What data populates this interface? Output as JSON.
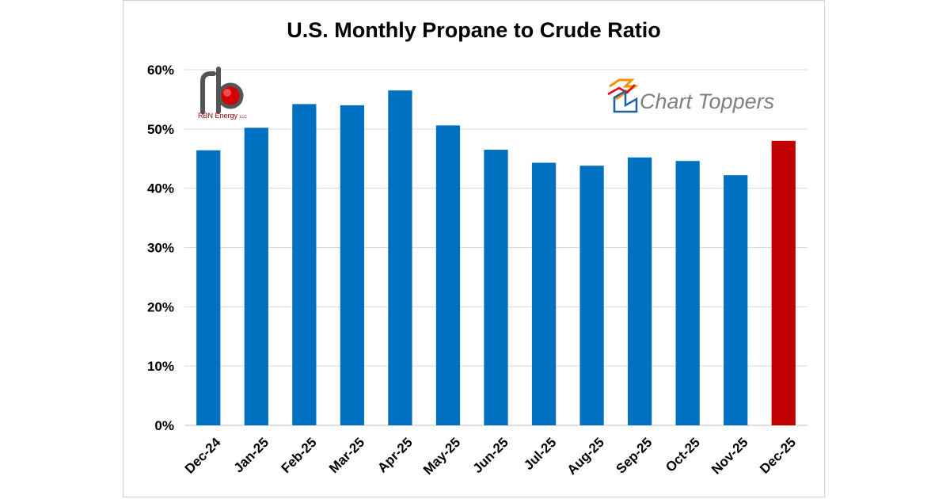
{
  "chart_data": {
    "type": "bar",
    "title": "U.S. Monthly Propane to Crude Ratio",
    "xlabel": "",
    "ylabel": "",
    "categories": [
      "Dec-24",
      "Jan-25",
      "Feb-25",
      "Mar-25",
      "Apr-25",
      "May-25",
      "Jun-25",
      "Jul-25",
      "Aug-25",
      "Sep-25",
      "Oct-25",
      "Nov-25",
      "Dec-25"
    ],
    "values": [
      46.4,
      50.2,
      54.2,
      54.0,
      56.5,
      50.6,
      46.5,
      44.3,
      43.8,
      45.2,
      44.6,
      42.2,
      48.0
    ],
    "ylim": [
      0,
      60
    ],
    "yticks": [
      "0%",
      "10%",
      "20%",
      "30%",
      "40%",
      "50%",
      "60%"
    ],
    "grid": true,
    "bar_color": "#0070c0",
    "highlight_color": "#c00000",
    "highlight_index": 12
  },
  "logos": {
    "rbn": {
      "icon": "rbn-logo",
      "text": "RBN Energy",
      "suffix": "LLC"
    },
    "charttoppers": {
      "icon": "chart-toppers-logo",
      "text": "Chart Toppers"
    }
  }
}
